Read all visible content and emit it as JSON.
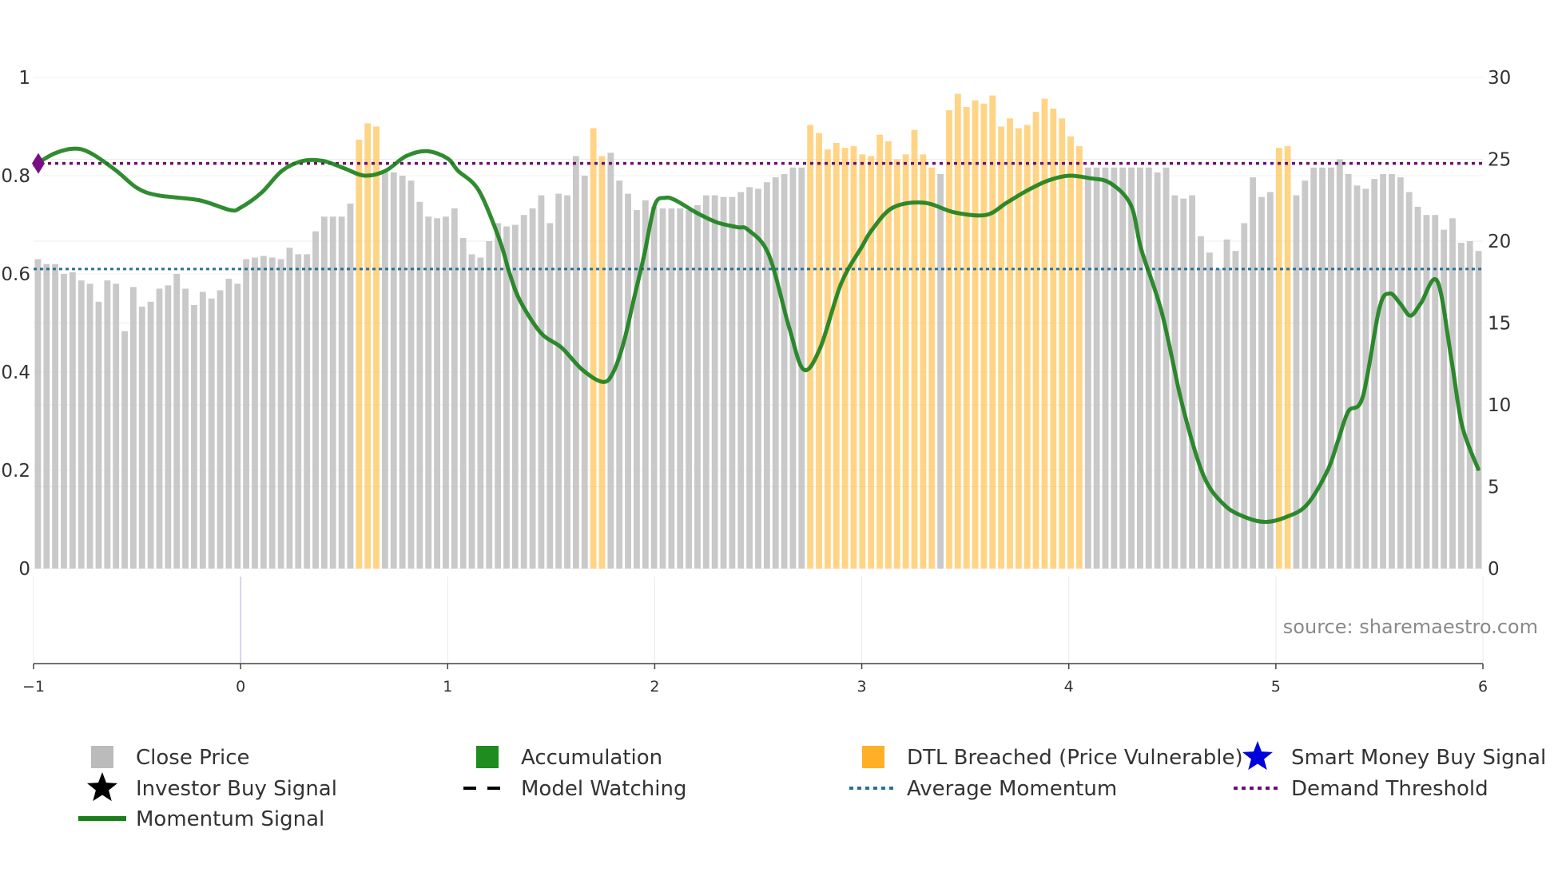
{
  "chart_data": {
    "type": "bar",
    "title": "",
    "source": "source: sharemaestro.com",
    "left_axis": {
      "ylim": [
        0,
        1
      ],
      "ticks": [
        0,
        0.2,
        0.4,
        0.6,
        0.8,
        1
      ],
      "labels": [
        "0",
        "0.2",
        "0.4",
        "0.6",
        "0.8",
        "1"
      ]
    },
    "right_axis": {
      "ylim": [
        0,
        30
      ],
      "ticks": [
        0,
        5,
        10,
        15,
        20,
        25,
        30
      ],
      "labels": [
        "0",
        "5",
        "10",
        "15",
        "20",
        "25",
        "30"
      ]
    },
    "x_axis": {
      "xlim": [
        -1,
        6
      ],
      "ticks": [
        -1,
        0,
        1,
        2,
        3,
        4,
        5,
        6
      ],
      "labels": [
        "−1",
        "0",
        "1",
        "2",
        "3",
        "4",
        "5",
        "6"
      ]
    },
    "close_price": [
      18.9,
      18.6,
      18.6,
      18.0,
      18.1,
      17.6,
      17.4,
      16.3,
      17.6,
      17.4,
      14.5,
      17.2,
      16.0,
      16.3,
      17.1,
      17.3,
      18.0,
      17.1,
      16.1,
      16.9,
      16.5,
      17.0,
      17.7,
      17.4,
      18.9,
      19.0,
      19.1,
      19.0,
      18.9,
      19.6,
      19.2,
      19.2,
      20.6,
      21.5,
      21.5,
      21.5,
      22.3,
      24.9,
      25.9,
      25.9,
      24.2,
      24.2,
      24.0,
      23.7,
      22.4,
      21.5,
      21.4,
      21.5,
      22.0,
      20.2,
      19.2,
      19.0,
      20.0,
      21.1,
      20.9,
      21.0,
      21.6,
      22.0,
      22.8,
      21.1,
      22.9,
      22.8,
      25.2,
      24.0,
      25.1,
      25.4,
      25.4,
      23.7,
      22.9,
      21.9,
      22.5,
      22.1,
      22.0,
      22.0,
      22.0,
      21.9,
      22.2,
      22.8,
      22.8,
      22.7,
      22.7,
      23.0,
      23.3,
      23.2,
      23.6,
      23.9,
      24.1,
      24.5,
      24.5,
      24.5,
      24.5,
      24.5,
      24.5,
      24.5,
      24.5,
      24.5,
      24.5,
      24.5,
      24.3,
      24.5,
      24.7,
      24.5,
      24.5,
      24.2,
      24.1,
      24.5,
      24.5,
      24.5,
      24.5,
      24.5,
      24.5,
      24.5,
      24.5,
      24.5,
      24.5,
      24.5,
      24.5,
      24.5,
      24.5,
      24.5,
      24.5,
      24.5,
      24.5,
      24.5,
      24.5,
      24.5,
      24.5,
      24.5,
      24.5,
      24.2,
      24.5,
      22.8,
      22.6,
      22.8,
      20.3,
      19.3,
      18.3,
      20.1,
      19.4,
      21.1,
      23.9,
      22.7,
      23.0,
      22.8,
      23.2,
      22.8,
      23.7,
      24.5,
      24.5,
      24.5,
      25.0,
      24.1,
      23.4,
      23.2,
      23.8,
      24.1,
      24.1,
      23.9,
      23.0,
      22.1,
      21.6,
      21.6,
      20.7,
      21.4,
      19.9,
      20.0,
      19.4
    ],
    "dtl_breached": [
      0,
      0,
      0,
      0,
      0,
      0,
      0,
      0,
      0,
      0,
      0,
      0,
      0,
      0,
      0,
      0,
      0,
      0,
      0,
      0,
      0,
      0,
      0,
      0,
      0,
      0,
      0,
      0,
      0,
      0,
      0,
      0,
      0,
      0,
      0,
      0,
      0,
      26.2,
      27.2,
      27.0,
      0,
      0,
      0,
      0,
      0,
      0,
      0,
      0,
      0,
      0,
      0,
      0,
      0,
      0,
      0,
      0,
      0,
      0,
      0,
      0,
      0,
      0,
      0,
      0,
      26.9,
      25.2,
      0,
      0,
      0,
      0,
      0,
      0,
      0,
      0,
      0,
      0,
      0,
      0,
      0,
      0,
      0,
      0,
      0,
      0,
      0,
      0,
      0,
      0,
      0,
      27.1,
      26.6,
      25.6,
      26.0,
      25.7,
      25.8,
      25.3,
      25.2,
      26.5,
      26.1,
      25.0,
      25.3,
      26.8,
      25.3,
      24.5,
      0,
      28.0,
      29.0,
      28.2,
      28.6,
      28.4,
      28.9,
      27.0,
      27.5,
      26.9,
      27.1,
      27.9,
      28.7,
      28.1,
      27.5,
      26.4,
      25.8,
      0,
      0,
      0,
      0,
      0,
      0,
      0,
      0,
      0,
      0,
      0,
      0,
      0,
      0,
      0,
      0,
      0,
      0,
      0,
      0,
      0,
      0,
      25.7,
      25.8,
      0,
      0,
      0,
      0,
      0,
      0,
      0,
      0,
      0,
      0,
      0,
      0,
      0,
      0,
      0,
      0,
      0,
      0,
      0,
      0
    ],
    "momentum": [
      [
        -1.0,
        0.82
      ],
      [
        -0.9,
        0.845
      ],
      [
        -0.8,
        0.855
      ],
      [
        -0.72,
        0.845
      ],
      [
        -0.6,
        0.81
      ],
      [
        -0.5,
        0.775
      ],
      [
        -0.4,
        0.76
      ],
      [
        -0.2,
        0.75
      ],
      [
        -0.05,
        0.73
      ],
      [
        0.0,
        0.735
      ],
      [
        0.1,
        0.765
      ],
      [
        0.2,
        0.81
      ],
      [
        0.3,
        0.83
      ],
      [
        0.4,
        0.83
      ],
      [
        0.5,
        0.815
      ],
      [
        0.6,
        0.8
      ],
      [
        0.7,
        0.81
      ],
      [
        0.8,
        0.84
      ],
      [
        0.9,
        0.85
      ],
      [
        1.0,
        0.835
      ],
      [
        1.05,
        0.81
      ],
      [
        1.15,
        0.77
      ],
      [
        1.25,
        0.67
      ],
      [
        1.3,
        0.6
      ],
      [
        1.35,
        0.545
      ],
      [
        1.45,
        0.48
      ],
      [
        1.55,
        0.45
      ],
      [
        1.65,
        0.405
      ],
      [
        1.75,
        0.38
      ],
      [
        1.8,
        0.4
      ],
      [
        1.85,
        0.46
      ],
      [
        1.9,
        0.55
      ],
      [
        1.95,
        0.64
      ],
      [
        2.0,
        0.74
      ],
      [
        2.05,
        0.755
      ],
      [
        2.1,
        0.75
      ],
      [
        2.2,
        0.725
      ],
      [
        2.3,
        0.705
      ],
      [
        2.4,
        0.695
      ],
      [
        2.45,
        0.69
      ],
      [
        2.55,
        0.64
      ],
      [
        2.65,
        0.49
      ],
      [
        2.72,
        0.405
      ],
      [
        2.8,
        0.45
      ],
      [
        2.9,
        0.58
      ],
      [
        3.0,
        0.655
      ],
      [
        3.05,
        0.69
      ],
      [
        3.15,
        0.735
      ],
      [
        3.3,
        0.745
      ],
      [
        3.45,
        0.725
      ],
      [
        3.6,
        0.72
      ],
      [
        3.7,
        0.745
      ],
      [
        3.8,
        0.77
      ],
      [
        3.9,
        0.79
      ],
      [
        4.0,
        0.8
      ],
      [
        4.1,
        0.795
      ],
      [
        4.2,
        0.785
      ],
      [
        4.3,
        0.74
      ],
      [
        4.35,
        0.65
      ],
      [
        4.45,
        0.52
      ],
      [
        4.55,
        0.33
      ],
      [
        4.65,
        0.19
      ],
      [
        4.75,
        0.13
      ],
      [
        4.85,
        0.105
      ],
      [
        4.95,
        0.095
      ],
      [
        5.05,
        0.105
      ],
      [
        5.15,
        0.13
      ],
      [
        5.25,
        0.2
      ],
      [
        5.3,
        0.26
      ],
      [
        5.35,
        0.32
      ],
      [
        5.42,
        0.35
      ],
      [
        5.5,
        0.53
      ],
      [
        5.55,
        0.56
      ],
      [
        5.6,
        0.54
      ],
      [
        5.65,
        0.515
      ],
      [
        5.7,
        0.54
      ],
      [
        5.78,
        0.585
      ],
      [
        5.85,
        0.42
      ],
      [
        5.9,
        0.29
      ],
      [
        5.98,
        0.2
      ]
    ],
    "avg_momentum": 0.61,
    "demand_threshold": 0.825,
    "legend": [
      {
        "key": "close",
        "label": "Close Price",
        "color": "#bbbbbb"
      },
      {
        "key": "accumulation",
        "label": "Accumulation",
        "color": "#1e8c1e"
      },
      {
        "key": "dtl",
        "label": "DTL Breached (Price Vulnerable)",
        "color": "#ffb027"
      },
      {
        "key": "smart",
        "label": "Smart Money Buy Signal",
        "color": "#0000dd"
      },
      {
        "key": "investor",
        "label": "Investor Buy Signal",
        "color": "#000000"
      },
      {
        "key": "watching",
        "label": "Model Watching",
        "color": "#000000"
      },
      {
        "key": "avgmom",
        "label": "Average Momentum",
        "color": "#2a6f98"
      },
      {
        "key": "demand",
        "label": "Demand Threshold",
        "color": "#6a1070"
      },
      {
        "key": "momentum",
        "label": "Momentum Signal",
        "color": "#1a7f1a"
      }
    ]
  }
}
